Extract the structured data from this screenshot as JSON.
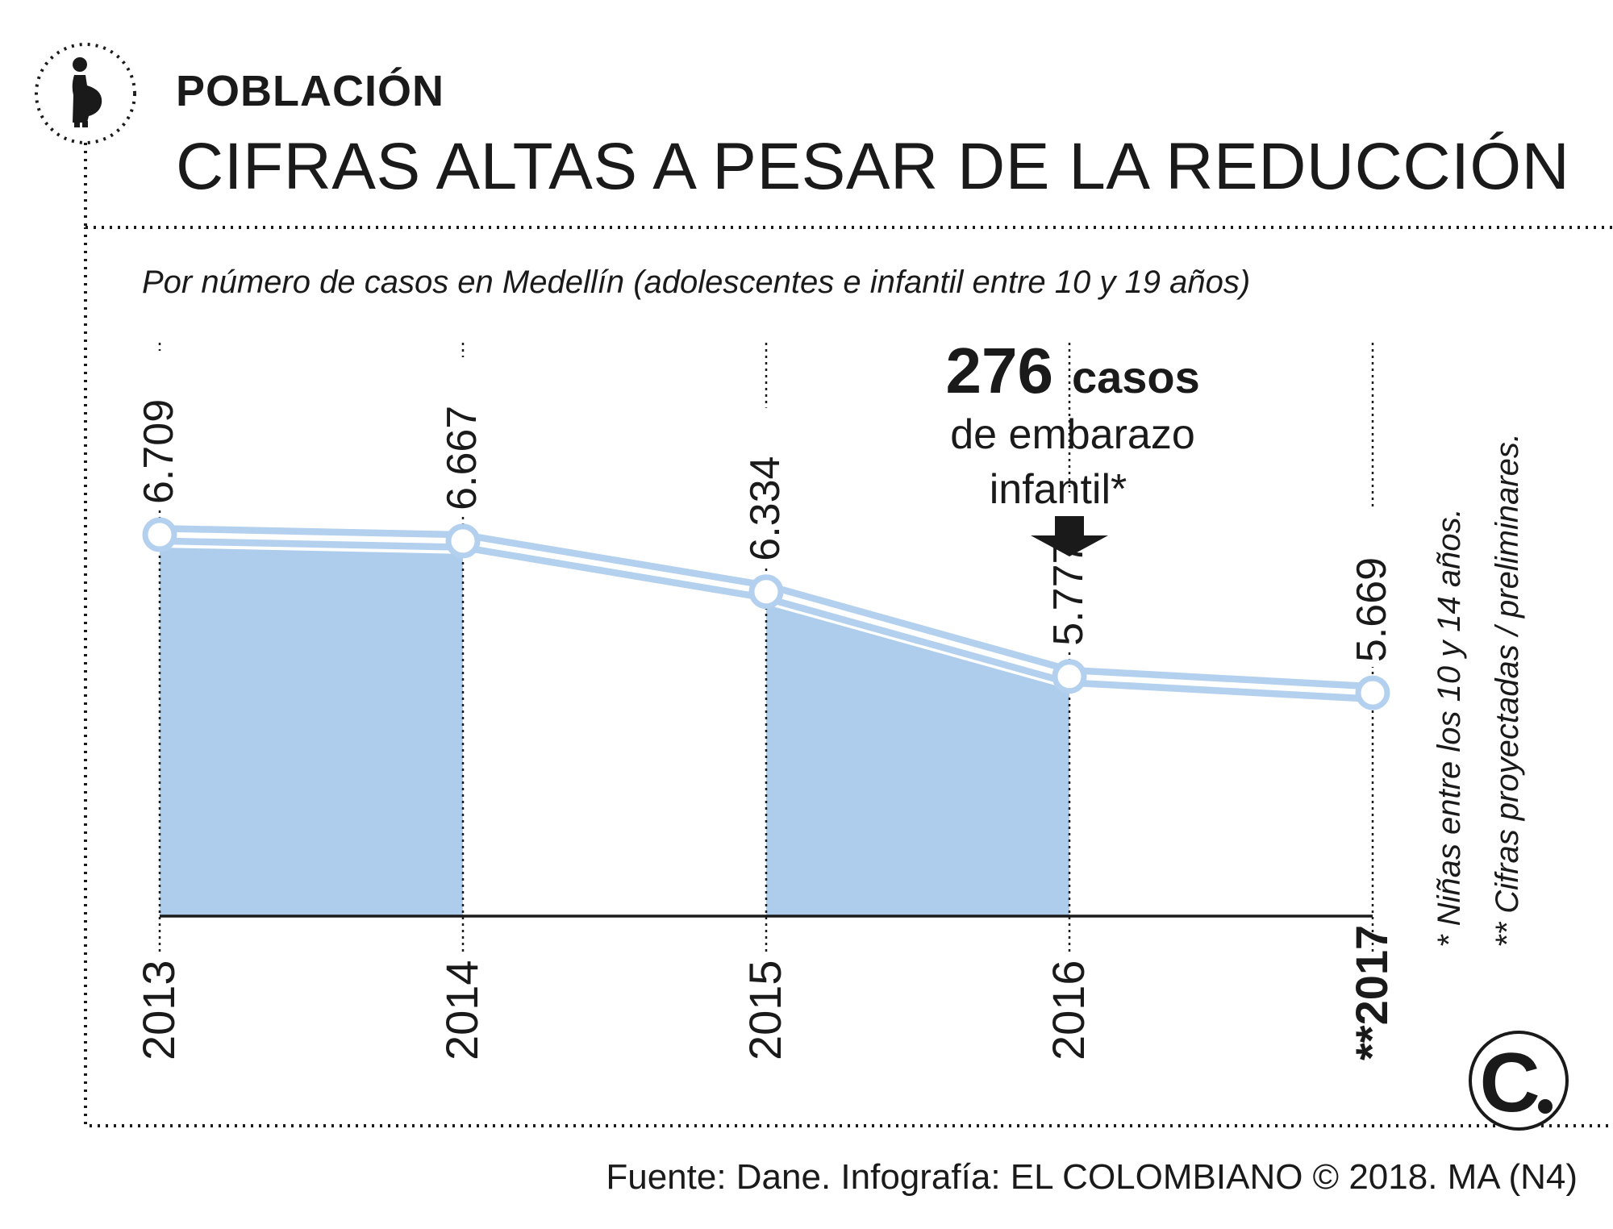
{
  "header": {
    "kicker": "POBLACIÓN",
    "headline": "CIFRAS ALTAS A PESAR DE LA REDUCCIÓN"
  },
  "icon": "pregnant-woman-icon",
  "logo_text": "C.",
  "chart_data": {
    "type": "line",
    "title": "CIFRAS ALTAS A PESAR DE LA REDUCCIÓN",
    "subtitle": "Por número de casos en Medellín (adolescentes e infantil entre 10 y 19 años)",
    "categories": [
      "2013",
      "2014",
      "2015",
      "2016",
      "2017"
    ],
    "category_labels": [
      "2013",
      "2014",
      "2015",
      "2016",
      "**2017"
    ],
    "values": [
      6709,
      6667,
      6334,
      5777,
      5669
    ],
    "value_labels": [
      "6.709",
      "6.667",
      "6.334",
      "5.777",
      "5.669"
    ],
    "shaded_intervals": [
      [
        "2013",
        "2014"
      ],
      [
        "2015",
        "2016"
      ]
    ],
    "annotation": {
      "number": "276",
      "unit": "casos",
      "line1": "de embarazo",
      "line2": "infantil*",
      "points_to": "2016"
    },
    "ylim": [
      4200,
      6900
    ],
    "colors": {
      "line": "#b3d0ee",
      "fill": "#aecdec",
      "axis": "#1a1a1a",
      "text": "#1a1a1a"
    }
  },
  "footnotes": {
    "note1": "* Niñas entre los 10 y 14 años.",
    "note2": "** Cifras proyectadas / preliminares."
  },
  "source": "Fuente: Dane. Infografía: EL COLOMBIANO © 2018. MA (N4)"
}
